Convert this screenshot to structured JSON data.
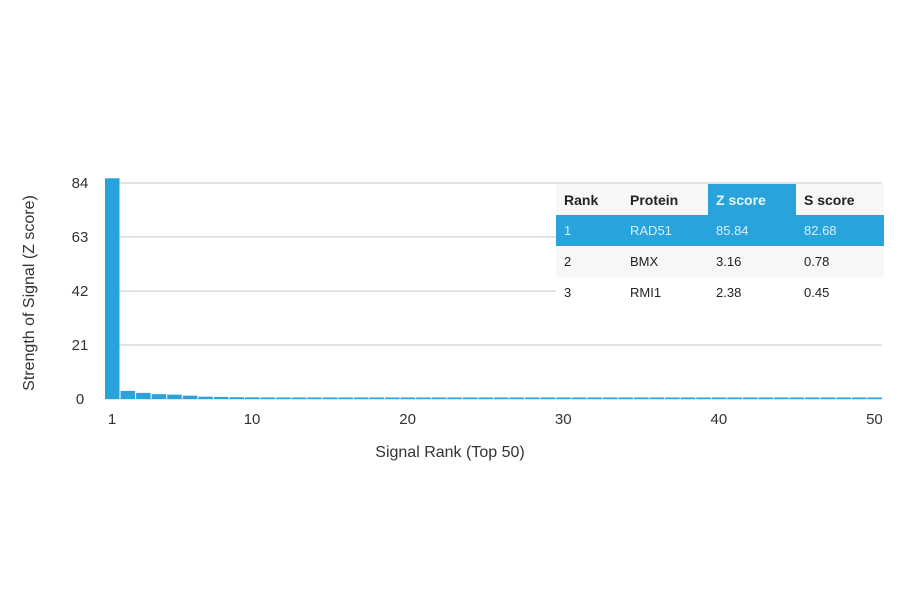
{
  "chart_data": {
    "type": "bar",
    "xlabel": "Signal Rank (Top 50)",
    "ylabel": "Strength of Signal (Z score)",
    "ylim": [
      0,
      84
    ],
    "yticks": [
      0,
      21,
      42,
      63,
      84
    ],
    "xticks": [
      1,
      10,
      20,
      30,
      40,
      50
    ],
    "xlim": [
      1,
      50
    ],
    "grid": true,
    "bar_color": "#29a3dc",
    "x": [
      1,
      2,
      3,
      4,
      5,
      6,
      7,
      8,
      9,
      10,
      11,
      12,
      13,
      14,
      15,
      16,
      17,
      18,
      19,
      20,
      21,
      22,
      23,
      24,
      25,
      26,
      27,
      28,
      29,
      30,
      31,
      32,
      33,
      34,
      35,
      36,
      37,
      38,
      39,
      40,
      41,
      42,
      43,
      44,
      45,
      46,
      47,
      48,
      49,
      50
    ],
    "values": [
      85.84,
      3.16,
      2.38,
      1.9,
      1.7,
      1.3,
      0.9,
      0.8,
      0.7,
      0.65,
      0.6,
      0.55,
      0.5,
      0.5,
      0.45,
      0.45,
      0.4,
      0.4,
      0.4,
      0.38,
      0.36,
      0.35,
      0.34,
      0.33,
      0.32,
      0.31,
      0.3,
      0.3,
      0.29,
      0.28,
      0.28,
      0.27,
      0.27,
      0.26,
      0.26,
      0.25,
      0.25,
      0.24,
      0.24,
      0.23,
      0.23,
      0.22,
      0.22,
      0.22,
      0.21,
      0.21,
      0.2,
      0.2,
      0.2,
      0.2
    ]
  },
  "table": {
    "headers": [
      "Rank",
      "Protein",
      "Z score",
      "S score"
    ],
    "rows": [
      [
        "1",
        "RAD51",
        "85.84",
        "82.68"
      ],
      [
        "2",
        "BMX",
        "3.16",
        "0.78"
      ],
      [
        "3",
        "RMI1",
        "2.38",
        "0.45"
      ]
    ]
  }
}
